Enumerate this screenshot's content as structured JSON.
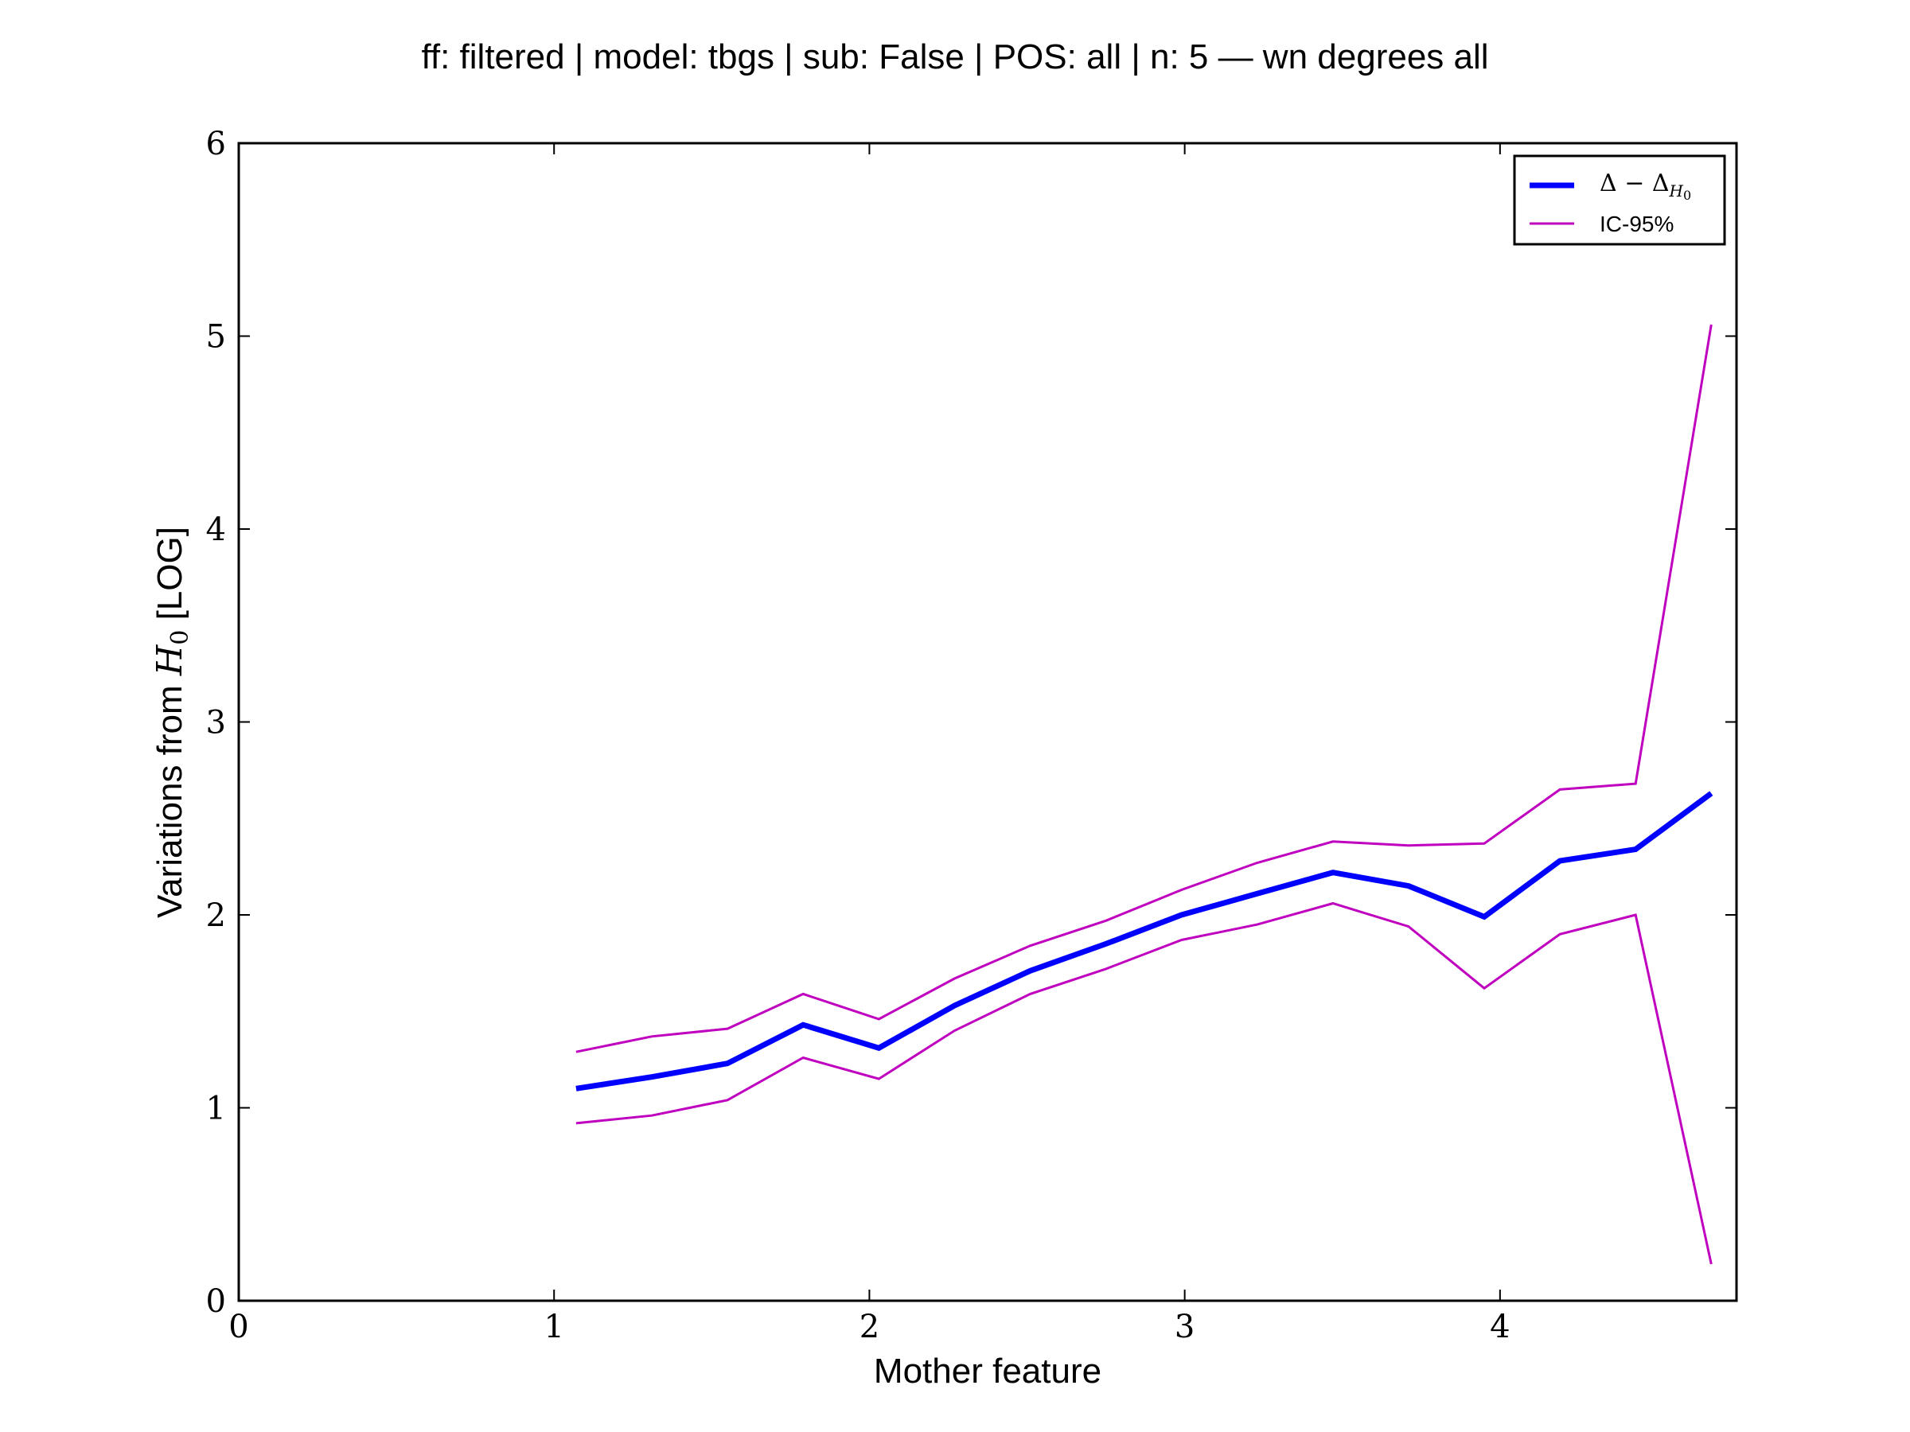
{
  "chart_data": {
    "type": "line",
    "title": "ff: filtered | model: tbgs | sub: False | POS: all | n: 5 — wn degrees all",
    "xlabel": "Mother feature",
    "ylabel_parts": [
      "Variations from ",
      "H",
      "0",
      " [LOG]"
    ],
    "xlim": [
      0,
      4.75
    ],
    "ylim": [
      0,
      6
    ],
    "xticks": [
      0,
      1,
      2,
      3,
      4
    ],
    "yticks": [
      0,
      1,
      2,
      3,
      4,
      5,
      6
    ],
    "grid": false,
    "legend_placement": "top-right",
    "x": [
      1.07,
      1.31,
      1.55,
      1.79,
      2.03,
      2.27,
      2.51,
      2.75,
      2.99,
      3.23,
      3.47,
      3.71,
      3.95,
      4.19,
      4.43,
      4.67
    ],
    "series": [
      {
        "name": "Δ − Δ_H0",
        "legend_parts": [
          "Δ − Δ",
          "H",
          "0"
        ],
        "color": "#0000ff",
        "values": [
          1.1,
          1.16,
          1.23,
          1.43,
          1.31,
          1.53,
          1.71,
          1.85,
          2.0,
          2.11,
          2.22,
          2.15,
          1.99,
          2.28,
          2.34,
          2.63
        ]
      },
      {
        "name": "IC-95%",
        "legend_parts": [
          "IC-95%"
        ],
        "color": "#bf00bf",
        "values": [
          1.29,
          1.37,
          1.41,
          1.59,
          1.46,
          1.67,
          1.84,
          1.97,
          2.13,
          2.27,
          2.38,
          2.36,
          2.37,
          2.65,
          2.68,
          5.06
        ]
      },
      {
        "name": "",
        "color": "#bf00bf",
        "values": [
          0.92,
          0.96,
          1.04,
          1.26,
          1.15,
          1.4,
          1.59,
          1.72,
          1.87,
          1.95,
          2.06,
          1.94,
          1.62,
          1.9,
          2.0,
          0.19
        ]
      }
    ]
  }
}
